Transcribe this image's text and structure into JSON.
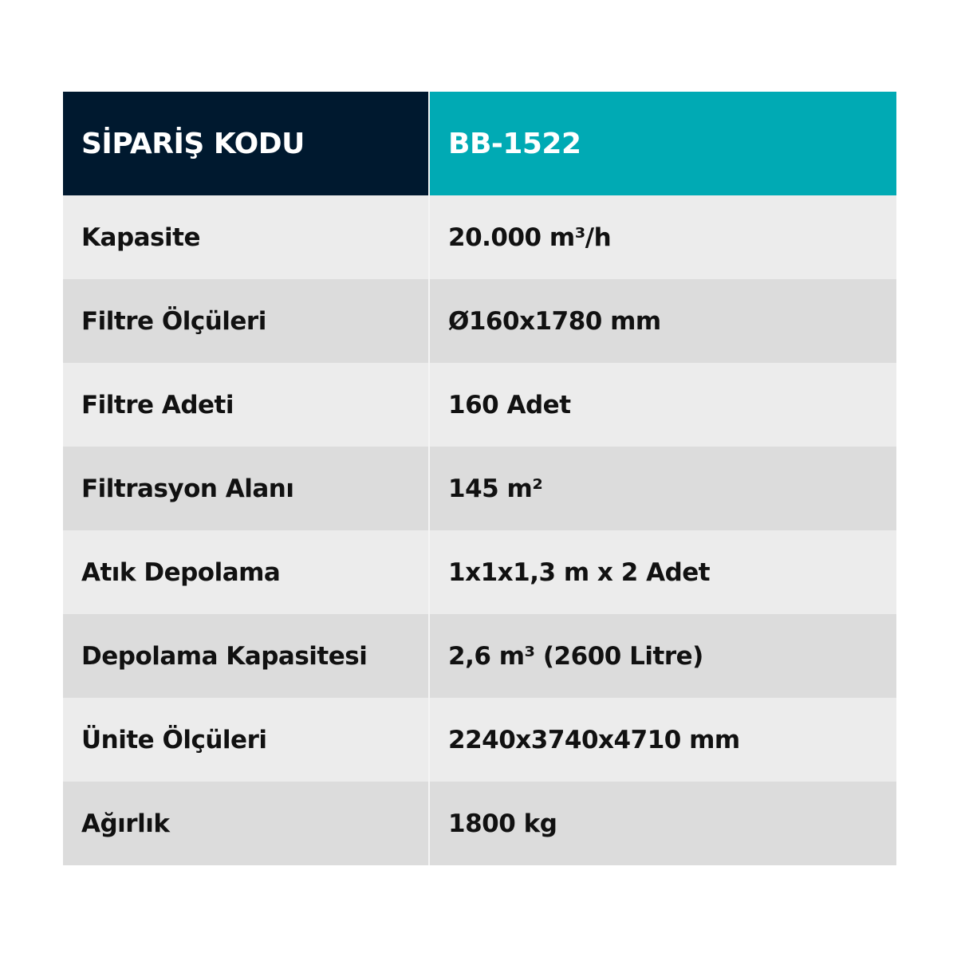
{
  "header": {
    "label": "SİPARİŞ KODU",
    "value": "BB-1522"
  },
  "rows": [
    {
      "label": "Kapasite",
      "value": "20.000 m³/h"
    },
    {
      "label": "Filtre Ölçüleri",
      "value": "Ø160x1780 mm"
    },
    {
      "label": "Filtre Adeti",
      "value": "160 Adet"
    },
    {
      "label": "Filtrasyon Alanı",
      "value": "145 m²"
    },
    {
      "label": "Atık Depolama",
      "value": "1x1x1,3 m x 2 Adet"
    },
    {
      "label": "Depolama Kapasitesi",
      "value": "2,6 m³ (2600 Litre)"
    },
    {
      "label": "Ünite Ölçüleri",
      "value": "2240x3740x4710 mm"
    },
    {
      "label": "Ağırlık",
      "value": "1800 kg"
    }
  ],
  "colors": {
    "header_label_bg": "#00192f",
    "header_value_bg": "#00aab4",
    "row_light": "#ececec",
    "row_dark": "#dcdcdc"
  }
}
